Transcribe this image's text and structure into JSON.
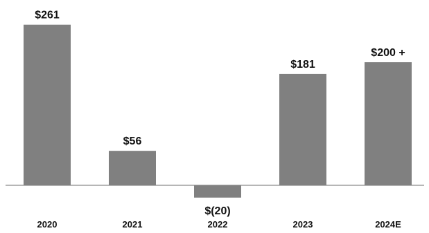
{
  "chart_data": {
    "type": "bar",
    "categories": [
      "2020",
      "2021",
      "2022",
      "2023",
      "2024E"
    ],
    "values": [
      261,
      56,
      -20,
      181,
      200
    ],
    "data_labels": [
      "$261",
      "$56",
      "$(20)",
      "$181",
      "$200 +"
    ],
    "title": "",
    "xlabel": "",
    "ylabel": "",
    "ylim": [
      -20,
      261
    ],
    "grid": false,
    "legend": "none",
    "bar_color": "#808080"
  }
}
